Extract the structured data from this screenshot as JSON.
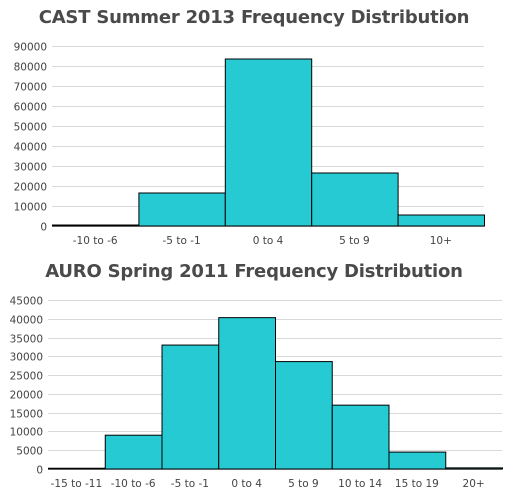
{
  "chart_data": [
    {
      "type": "bar",
      "title": "CAST Summer 2013 Frequency Distribution",
      "categories": [
        "-10 to -6",
        "-5 to -1",
        "0 to 4",
        "5 to 9",
        "10+"
      ],
      "values": [
        500,
        16500,
        83500,
        26500,
        5500
      ],
      "ylim": [
        0,
        90000
      ],
      "yticks": [
        "0",
        "10000",
        "20000",
        "30000",
        "40000",
        "50000",
        "60000",
        "70000",
        "80000",
        "90000"
      ],
      "xlabel": "",
      "ylabel": "",
      "grid": true,
      "bar_color": "#26cad3"
    },
    {
      "type": "bar",
      "title": "AURO Spring 2011 Frequency Distribution",
      "categories": [
        "-15 to -11",
        "-10 to -6",
        "-5 to -1",
        "0 to 4",
        "5 to 9",
        "10 to 14",
        "15 to 19",
        "20+"
      ],
      "values": [
        200,
        9000,
        33000,
        40300,
        28600,
        17000,
        4500,
        300
      ],
      "ylim": [
        0,
        45000
      ],
      "yticks": [
        "0",
        "5000",
        "10000",
        "15000",
        "20000",
        "25000",
        "30000",
        "35000",
        "40000",
        "45000"
      ],
      "xlabel": "",
      "ylabel": "",
      "grid": true,
      "bar_color": "#26cad3"
    }
  ]
}
